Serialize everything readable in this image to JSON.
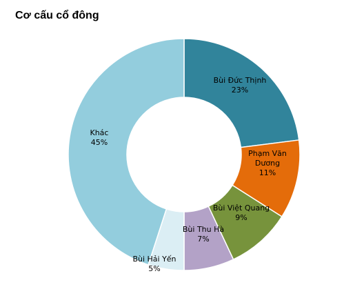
{
  "title": "Cơ cấu cổ đông",
  "chart_data": {
    "type": "pie",
    "donut": true,
    "title": "Cơ cấu cổ đông",
    "slices": [
      {
        "name": "Bùi Đức Thịnh",
        "label_lines": [
          "Bùi Đức Thịnh"
        ],
        "value": 23,
        "value_label": "23%",
        "color": "#31849B"
      },
      {
        "name": "Phạm Văn Dương",
        "label_lines": [
          "Phạm Văn",
          "Dương"
        ],
        "value": 11,
        "value_label": "11%",
        "color": "#E46C0A"
      },
      {
        "name": "Bùi Việt Quang",
        "label_lines": [
          "Bùi Việt Quang"
        ],
        "value": 9,
        "value_label": "9%",
        "color": "#77933C"
      },
      {
        "name": "Bùi Thu Hà",
        "label_lines": [
          "Bùi Thu Hà"
        ],
        "value": 7,
        "value_label": "7%",
        "color": "#B3A2C7"
      },
      {
        "name": "Bùi Hải Yến",
        "label_lines": [
          "Bùi Hải Yến"
        ],
        "value": 5,
        "value_label": "5%",
        "color": "#DBEEF4"
      },
      {
        "name": "Khác",
        "label_lines": [
          "Khác"
        ],
        "value": 45,
        "value_label": "45%",
        "color": "#93CDDD"
      }
    ]
  }
}
